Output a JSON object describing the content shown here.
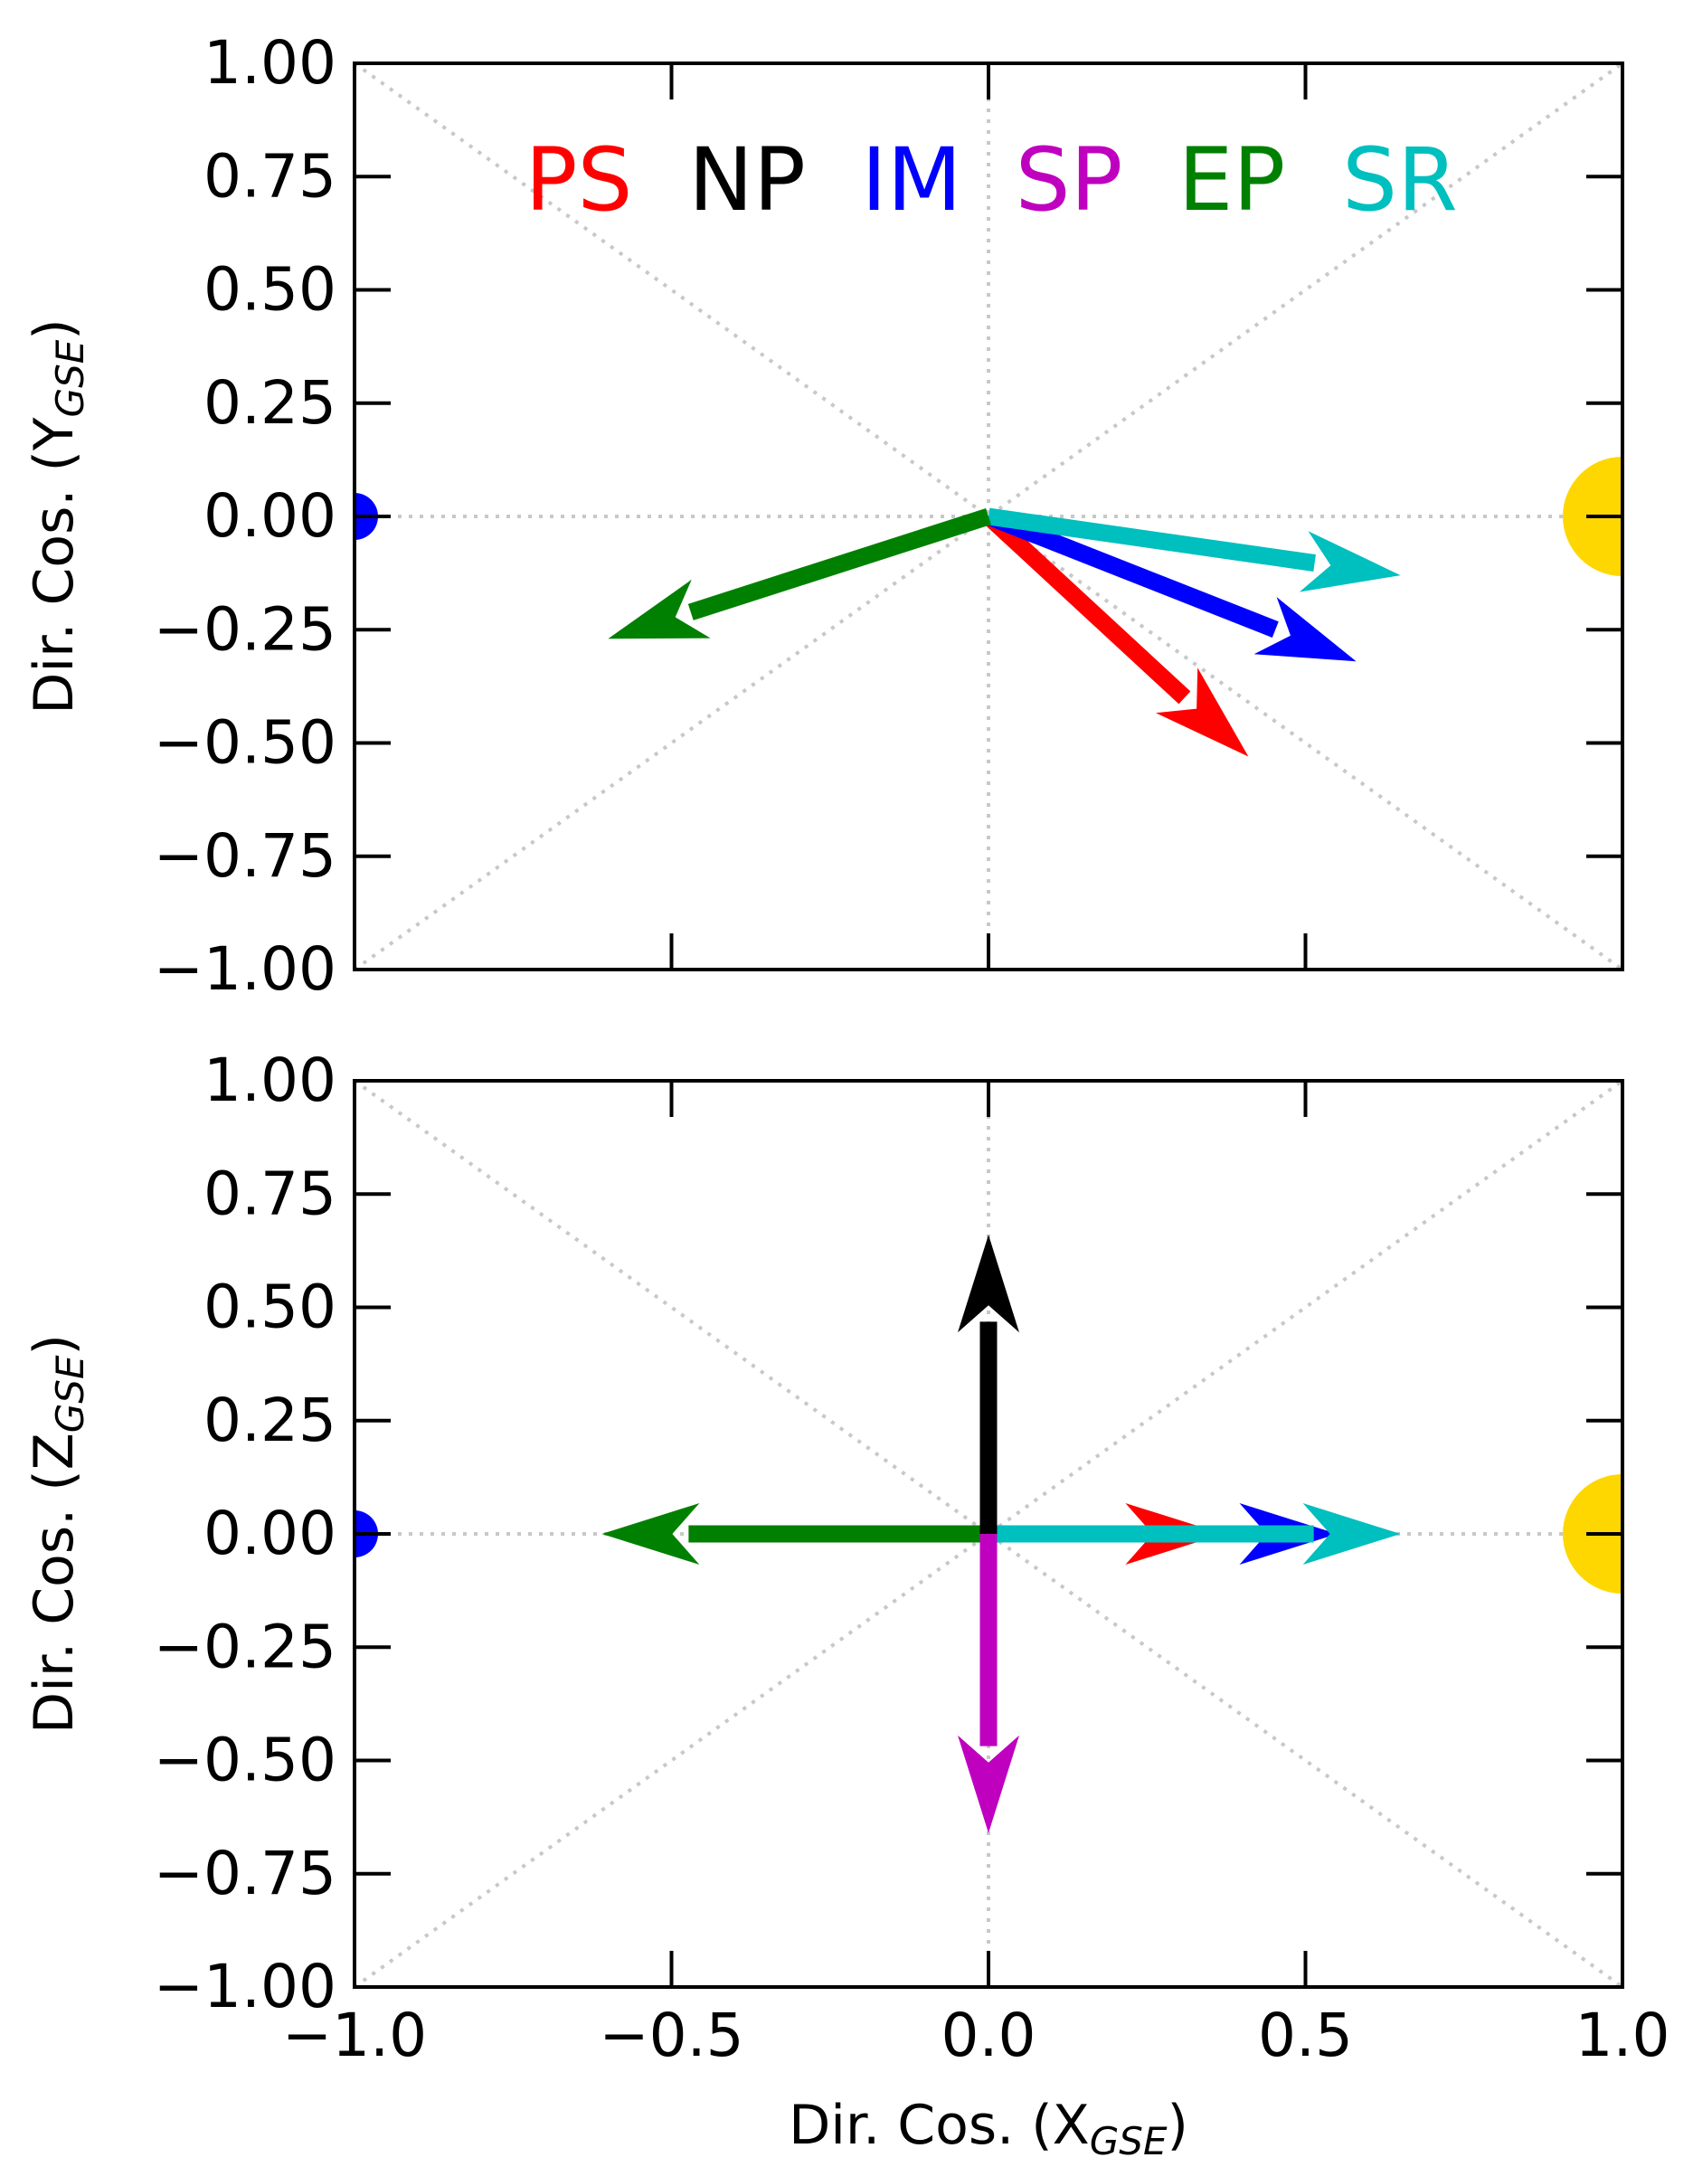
{
  "chart_data": [
    {
      "type": "vector",
      "ylabel": "Dir. Cos. (Y",
      "ylabel_sub": "GSE",
      "ylabel_end": ")",
      "xlim": [
        -1.0,
        1.0
      ],
      "ylim": [
        -1.0,
        1.0
      ],
      "yticks": [
        "1.00",
        "0.75",
        "0.50",
        "0.25",
        "0.00",
        "−0.25",
        "−0.50",
        "−0.75",
        "−1.00"
      ],
      "ytick_values": [
        1.0,
        0.75,
        0.5,
        0.25,
        0.0,
        -0.25,
        -0.5,
        -0.75,
        -1.0
      ],
      "grid": "dotted",
      "legend": {
        "placement": "top",
        "entries": [
          {
            "label": "PS",
            "color": "#ff0000"
          },
          {
            "label": "NP",
            "color": "#000000"
          },
          {
            "label": "IM",
            "color": "#0000ff"
          },
          {
            "label": "SP",
            "color": "#bf00bf"
          },
          {
            "label": "EP",
            "color": "#008000"
          },
          {
            "label": "SR",
            "color": "#00bfbf"
          }
        ]
      },
      "vectors": [
        {
          "label": "PS",
          "color": "#ff0000",
          "x": 0.41,
          "y": -0.53
        },
        {
          "label": "IM",
          "color": "#0000ff",
          "x": 0.58,
          "y": -0.32
        },
        {
          "label": "SR",
          "color": "#00bfbf",
          "x": 0.65,
          "y": -0.13
        },
        {
          "label": "EP",
          "color": "#008000",
          "x": -0.6,
          "y": -0.27
        }
      ],
      "markers": [
        {
          "name": "earth",
          "color": "#0000ff",
          "x": -1.0,
          "y": 0.0
        },
        {
          "name": "sun",
          "color": "#ffd700",
          "x": 1.0,
          "y": 0.0
        }
      ]
    },
    {
      "type": "vector",
      "xlabel": "Dir. Cos. (X",
      "xlabel_sub": "GSE",
      "xlabel_end": ")",
      "ylabel": "Dir. Cos. (Z",
      "ylabel_sub": "GSE",
      "ylabel_end": ")",
      "xlim": [
        -1.0,
        1.0
      ],
      "ylim": [
        -1.0,
        1.0
      ],
      "xticks": [
        "−1.0",
        "−0.5",
        "0.0",
        "0.5",
        "1.0"
      ],
      "xtick_values": [
        -1.0,
        -0.5,
        0.0,
        0.5,
        1.0
      ],
      "yticks": [
        "1.00",
        "0.75",
        "0.50",
        "0.25",
        "0.00",
        "−0.25",
        "−0.50",
        "−0.75",
        "−1.00"
      ],
      "ytick_values": [
        1.0,
        0.75,
        0.5,
        0.25,
        0.0,
        -0.25,
        -0.5,
        -0.75,
        -1.0
      ],
      "grid": "dotted",
      "vectors": [
        {
          "label": "PS",
          "color": "#ff0000",
          "x": 0.37,
          "y": 0.0
        },
        {
          "label": "IM",
          "color": "#0000ff",
          "x": 0.55,
          "y": 0.0
        },
        {
          "label": "SR",
          "color": "#00bfbf",
          "x": 0.65,
          "y": 0.0
        },
        {
          "label": "EP",
          "color": "#008000",
          "x": -0.61,
          "y": 0.0
        },
        {
          "label": "NP",
          "color": "#000000",
          "x": 0.0,
          "y": 0.66
        },
        {
          "label": "SP",
          "color": "#bf00bf",
          "x": 0.0,
          "y": -0.66
        }
      ],
      "markers": [
        {
          "name": "earth",
          "color": "#0000ff",
          "x": -1.0,
          "y": 0.0
        },
        {
          "name": "sun",
          "color": "#ffd700",
          "x": 1.0,
          "y": 0.0
        }
      ]
    }
  ]
}
